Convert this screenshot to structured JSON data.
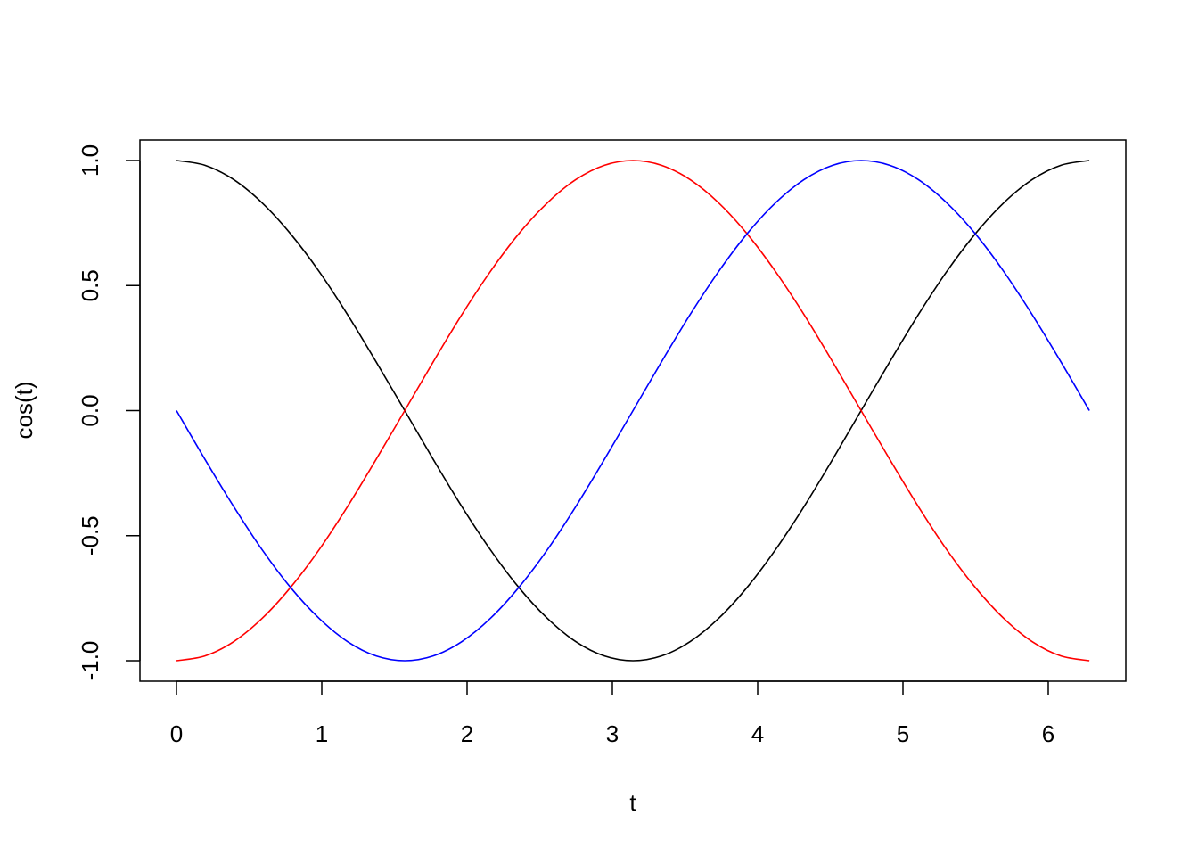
{
  "chart_data": {
    "type": "line",
    "title": "",
    "xlabel": "t",
    "ylabel": "cos(t)",
    "xlim": [
      0,
      6.283
    ],
    "ylim": [
      -1,
      1
    ],
    "grid": false,
    "x_ticks": [
      0,
      1,
      2,
      3,
      4,
      5,
      6
    ],
    "x_tick_labels": [
      "0",
      "1",
      "2",
      "3",
      "4",
      "5",
      "6"
    ],
    "y_ticks": [
      -1,
      -0.5,
      0,
      0.5,
      1
    ],
    "y_tick_labels": [
      "-1.0",
      "-0.5",
      "0.0",
      "0.5",
      "1.0"
    ],
    "x": [
      0,
      0.196,
      0.393,
      0.589,
      0.785,
      0.982,
      1.178,
      1.374,
      1.571,
      1.767,
      1.963,
      2.16,
      2.356,
      2.553,
      2.749,
      2.945,
      3.142,
      3.338,
      3.534,
      3.731,
      3.927,
      4.123,
      4.32,
      4.516,
      4.712,
      4.909,
      5.105,
      5.301,
      5.498,
      5.694,
      5.89,
      6.087,
      6.283
    ],
    "series": [
      {
        "color": "#000000",
        "values": [
          1,
          0.981,
          0.924,
          0.831,
          0.707,
          0.556,
          0.383,
          0.195,
          0,
          -0.195,
          -0.383,
          -0.556,
          -0.707,
          -0.831,
          -0.924,
          -0.981,
          -1,
          -0.981,
          -0.924,
          -0.831,
          -0.707,
          -0.556,
          -0.383,
          -0.195,
          0,
          0.195,
          0.383,
          0.556,
          0.707,
          0.831,
          0.924,
          0.981,
          1
        ]
      },
      {
        "color": "#ff0000",
        "values": [
          -1,
          -0.981,
          -0.924,
          -0.831,
          -0.707,
          -0.556,
          -0.383,
          -0.195,
          0,
          0.195,
          0.383,
          0.556,
          0.707,
          0.831,
          0.924,
          0.981,
          1,
          0.981,
          0.924,
          0.831,
          0.707,
          0.556,
          0.383,
          0.195,
          0,
          -0.195,
          -0.383,
          -0.556,
          -0.707,
          -0.831,
          -0.924,
          -0.981,
          -1
        ]
      },
      {
        "color": "#0000ff",
        "values": [
          0,
          -0.195,
          -0.383,
          -0.556,
          -0.707,
          -0.831,
          -0.924,
          -0.981,
          -1,
          -0.981,
          -0.924,
          -0.831,
          -0.707,
          -0.556,
          -0.383,
          -0.195,
          0,
          0.195,
          0.383,
          0.556,
          0.707,
          0.831,
          0.924,
          0.981,
          1,
          0.981,
          0.924,
          0.831,
          0.707,
          0.556,
          0.383,
          0.195,
          0
        ]
      }
    ]
  }
}
